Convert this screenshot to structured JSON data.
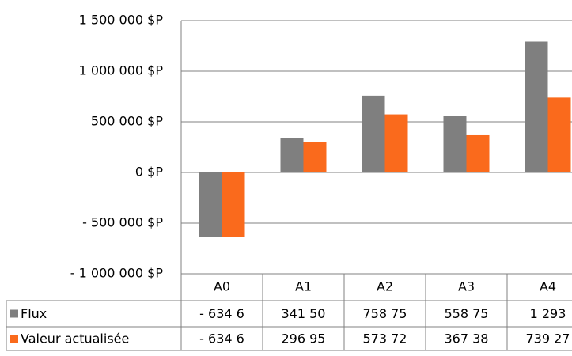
{
  "chart_data": {
    "type": "bar",
    "categories": [
      "A0",
      "A1",
      "A2",
      "A3",
      "A4"
    ],
    "series": [
      {
        "name": "Flux",
        "color": "#7f7f7f",
        "values": [
          -634600,
          341500,
          758750,
          558750,
          1293000
        ],
        "value_labels": [
          "- 634 6",
          "341 50",
          "758 75",
          "558 75",
          "1 293"
        ]
      },
      {
        "name": "Valeur actualisée",
        "color": "#fa6a1c",
        "values": [
          -634600,
          296950,
          573720,
          367380,
          739270
        ],
        "value_labels": [
          "- 634 6",
          "296 95",
          "573 72",
          "367 38",
          "739 27"
        ]
      }
    ],
    "ylim": [
      -1000000,
      1500000
    ],
    "yticks": [
      {
        "value": -1000000,
        "label": "- 1 000 000 $P"
      },
      {
        "value": -500000,
        "label": "- 500 000 $P"
      },
      {
        "value": 0,
        "label": "0 $P"
      },
      {
        "value": 500000,
        "label": "500 000 $P"
      },
      {
        "value": 1000000,
        "label": "1 000 000 $P"
      },
      {
        "value": 1500000,
        "label": "1 500 000 $P"
      }
    ],
    "grid": true
  }
}
